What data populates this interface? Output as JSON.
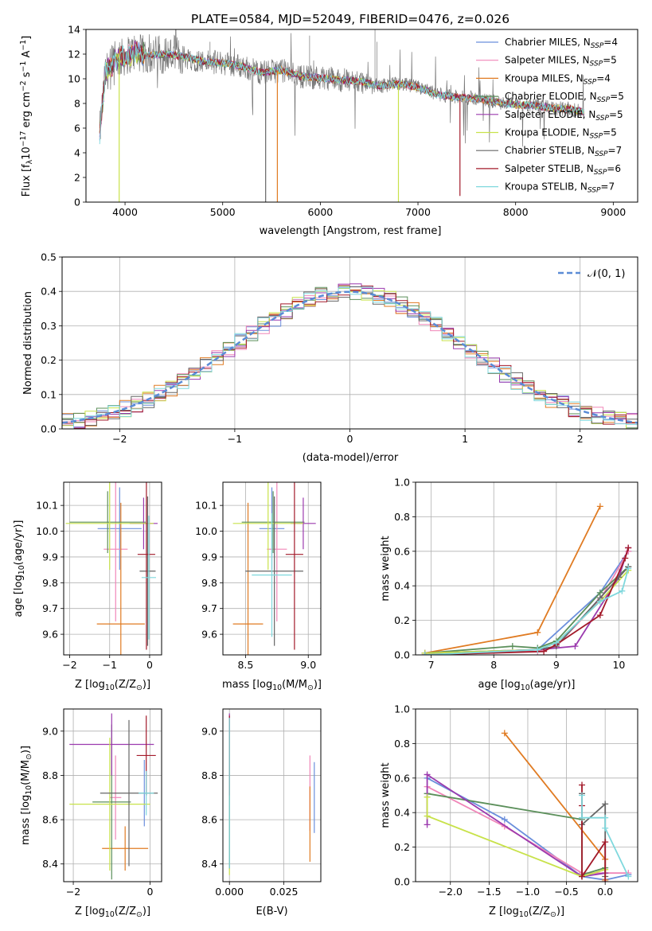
{
  "title": "PLATE=0584, MJD=52049, FIBERID=0476, z=0.026",
  "colors": [
    "#6b8fdc",
    "#f086b8",
    "#e07b22",
    "#5b8f5a",
    "#9b3aae",
    "#c8e24a",
    "#666666",
    "#a31a2a",
    "#7fd8dd"
  ],
  "chart_data": [
    {
      "type": "line",
      "name": "spectrum",
      "xlabel": "wavelength [Angstrom, rest frame]",
      "ylabel_parts": [
        "Flux [f",
        "λ",
        "10",
        "−17",
        " erg cm",
        "−2",
        " s",
        "−1",
        " A",
        "−1",
        "]"
      ],
      "xlim": [
        3600,
        9250
      ],
      "ylim": [
        0,
        14
      ],
      "xticks": [
        4000,
        5000,
        6000,
        7000,
        8000,
        9000
      ],
      "yticks": [
        0,
        2,
        4,
        6,
        8,
        10,
        12,
        14
      ],
      "grid": false,
      "legend_position": "top-right",
      "series": [
        {
          "name": "Chabrier MILES, N_SSP=4"
        },
        {
          "name": "Salpeter MILES, N_SSP=5"
        },
        {
          "name": "Kroupa MILES, N_SSP=4"
        },
        {
          "name": "Chabrier ELODIE, N_SSP=5"
        },
        {
          "name": "Salpeter ELODIE, N_SSP=5"
        },
        {
          "name": "Kroupa ELODIE, N_SSP=5"
        },
        {
          "name": "Chabrier STELIB, N_SSP=7"
        },
        {
          "name": "Salpeter STELIB, N_SSP=6"
        },
        {
          "name": "Kroupa STELIB, N_SSP=7"
        }
      ],
      "continuum": {
        "x": [
          3740,
          3800,
          3900,
          4000,
          4100,
          4200,
          4400,
          4600,
          4800,
          5000,
          5200,
          5400,
          5600,
          5800,
          6000,
          6200,
          6400,
          6600,
          6800,
          7000,
          7200,
          7400,
          7600,
          7800,
          8000,
          8200,
          8400,
          8600,
          8700
        ],
        "y": [
          5.5,
          10.5,
          11.5,
          11.8,
          12.2,
          11.9,
          12.0,
          11.8,
          11.4,
          11.3,
          11.0,
          10.5,
          10.7,
          10.2,
          10.1,
          9.9,
          9.8,
          9.4,
          9.6,
          9.3,
          8.7,
          8.5,
          8.4,
          8.1,
          7.9,
          7.8,
          7.6,
          7.5,
          7.3
        ]
      },
      "dips": [
        {
          "x": 3940,
          "y": 0.0,
          "series": 5
        },
        {
          "x": 5440,
          "y": 0.0,
          "series": 6
        },
        {
          "x": 5560,
          "y": 0.0,
          "series": 2
        },
        {
          "x": 6800,
          "y": 0.0,
          "series": 5
        },
        {
          "x": 7430,
          "y": 0.5,
          "series": 7
        }
      ]
    },
    {
      "type": "step",
      "name": "residuals",
      "xlabel": "(data-model)/error",
      "ylabel": "Normed distribution",
      "xlim": [
        -2.5,
        2.5
      ],
      "ylim": [
        0,
        0.5
      ],
      "xticks": [
        -2,
        -1,
        0,
        1,
        2
      ],
      "yticks": [
        0.0,
        0.1,
        0.2,
        0.3,
        0.4,
        0.5
      ],
      "grid": true,
      "legend_position": "top-right",
      "legend_label_parts": [
        "𝒩",
        "(0, 1)"
      ],
      "bin_width": 0.1,
      "reference_curve": "standard normal pdf"
    },
    {
      "type": "errorbar",
      "name": "age-vs-Z",
      "xlabel_parts": [
        "Z [log",
        "10",
        "(Z/Z",
        "⊙",
        ")]"
      ],
      "ylabel_parts": [
        "age  [log",
        "10",
        "(age/yr)]"
      ],
      "xlim": [
        -2.15,
        0.3
      ],
      "ylim": [
        9.52,
        10.19
      ],
      "xticks": [
        -2,
        -1,
        0
      ],
      "yticks": [
        9.6,
        9.7,
        9.8,
        9.9,
        10.0,
        10.1
      ],
      "grid": true,
      "points": [
        {
          "series": 0,
          "x": -0.75,
          "xerr": 0.55,
          "y": 10.01,
          "yerr": 0.16
        },
        {
          "series": 1,
          "x": -0.85,
          "xerr": 0.3,
          "y": 9.93,
          "yerr": 0.28
        },
        {
          "series": 2,
          "x": -0.72,
          "xerr": 0.6,
          "y": 9.64,
          "yerr": 0.47
        },
        {
          "series": 3,
          "x": -1.05,
          "xerr": 0.95,
          "y": 10.035,
          "yerr": 0.12
        },
        {
          "series": 4,
          "x": -0.15,
          "xerr": 0.35,
          "y": 10.03,
          "yerr": 0.1
        },
        {
          "series": 5,
          "x": -1.0,
          "xerr": 1.1,
          "y": 10.03,
          "yerr": 0.18
        },
        {
          "series": 6,
          "x": -0.05,
          "xerr": 0.2,
          "y": 9.845,
          "yerr": 0.29
        },
        {
          "series": 7,
          "x": -0.08,
          "xerr": 0.22,
          "y": 9.91,
          "yerr": 0.37
        },
        {
          "series": 8,
          "x": -0.02,
          "xerr": 0.18,
          "y": 9.82,
          "yerr": 0.24
        }
      ]
    },
    {
      "type": "errorbar",
      "name": "age-vs-mass",
      "xlabel_parts": [
        "mass [log",
        "10",
        "(M/M",
        "⊙",
        ")]"
      ],
      "xlim": [
        8.32,
        9.1
      ],
      "ylim": [
        9.52,
        10.19
      ],
      "xticks": [
        8.5,
        9.0
      ],
      "yticks": [
        9.6,
        9.7,
        9.8,
        9.9,
        10.0,
        10.1
      ],
      "grid": true,
      "points": [
        {
          "series": 0,
          "x": 8.71,
          "xerr": 0.1,
          "y": 10.01,
          "yerr": 0.16
        },
        {
          "series": 1,
          "x": 8.75,
          "xerr": 0.08,
          "y": 9.93,
          "yerr": 0.28
        },
        {
          "series": 2,
          "x": 8.52,
          "xerr": 0.12,
          "y": 9.64,
          "yerr": 0.47
        },
        {
          "series": 3,
          "x": 8.72,
          "xerr": 0.25,
          "y": 10.035,
          "yerr": 0.12
        },
        {
          "series": 4,
          "x": 8.96,
          "xerr": 0.1,
          "y": 10.03,
          "yerr": 0.1
        },
        {
          "series": 5,
          "x": 8.68,
          "xerr": 0.28,
          "y": 10.03,
          "yerr": 0.18
        },
        {
          "series": 6,
          "x": 8.73,
          "xerr": 0.23,
          "y": 9.845,
          "yerr": 0.29
        },
        {
          "series": 7,
          "x": 8.89,
          "xerr": 0.07,
          "y": 9.91,
          "yerr": 0.37
        },
        {
          "series": 8,
          "x": 8.71,
          "xerr": 0.16,
          "y": 9.83,
          "yerr": 0.24
        }
      ]
    },
    {
      "type": "line",
      "name": "mass-weight-vs-age",
      "xlabel_parts": [
        "age  [log",
        "10",
        "(age/yr)]"
      ],
      "ylabel": "mass weight",
      "xlim": [
        6.75,
        10.3
      ],
      "ylim": [
        0,
        1
      ],
      "xticks": [
        7,
        8,
        9,
        10
      ],
      "yticks": [
        0.0,
        0.2,
        0.4,
        0.6,
        0.8,
        1.0
      ],
      "grid": true,
      "series": [
        {
          "series": 0,
          "x": [
            6.9,
            8.7,
            9.7,
            10.15
          ],
          "y": [
            0.01,
            0.03,
            0.36,
            0.6
          ]
        },
        {
          "series": 1,
          "x": [
            6.9,
            8.7,
            9.0,
            9.7,
            10.15
          ],
          "y": [
            0.01,
            0.02,
            0.05,
            0.32,
            0.6
          ]
        },
        {
          "series": 2,
          "x": [
            6.9,
            8.7,
            9.7
          ],
          "y": [
            0.01,
            0.13,
            0.86
          ]
        },
        {
          "series": 3,
          "x": [
            6.9,
            8.3,
            8.7,
            9.0,
            9.7,
            10.15
          ],
          "y": [
            0.01,
            0.05,
            0.04,
            0.08,
            0.36,
            0.51
          ]
        },
        {
          "series": 4,
          "x": [
            6.9,
            8.7,
            9.3,
            10.0,
            10.15
          ],
          "y": [
            0.01,
            0.03,
            0.05,
            0.45,
            0.62
          ]
        },
        {
          "series": 5,
          "x": [
            6.9,
            8.7,
            9.0,
            9.7,
            10.15
          ],
          "y": [
            0.01,
            0.03,
            0.07,
            0.31,
            0.49
          ]
        },
        {
          "series": 6,
          "x": [
            6.9,
            8.7,
            9.0,
            9.7,
            10.0,
            10.15
          ],
          "y": [
            0.0,
            0.03,
            0.05,
            0.33,
            0.45,
            0.51
          ]
        },
        {
          "series": 7,
          "x": [
            6.9,
            8.8,
            9.0,
            9.7,
            10.1,
            10.15
          ],
          "y": [
            0.0,
            0.02,
            0.06,
            0.23,
            0.56,
            0.62
          ]
        },
        {
          "series": 8,
          "x": [
            6.9,
            8.7,
            9.0,
            9.7,
            10.05,
            10.15
          ],
          "y": [
            0.0,
            0.03,
            0.07,
            0.31,
            0.37,
            0.5
          ]
        }
      ]
    },
    {
      "type": "errorbar",
      "name": "mass-vs-Z",
      "xlabel_parts": [
        "Z [log",
        "10",
        "(Z/Z",
        "⊙",
        ")]"
      ],
      "ylabel_parts": [
        "mass [log",
        "10",
        "(M/M",
        "⊙",
        ")]"
      ],
      "xlim": [
        -2.25,
        0.3
      ],
      "ylim": [
        8.32,
        9.1
      ],
      "xticks": [
        -2,
        0
      ],
      "yticks": [
        8.4,
        8.6,
        8.8,
        9.0
      ],
      "grid": true,
      "points": [
        {
          "series": 0,
          "x": -0.15,
          "xerr": 0.15,
          "y": 8.72,
          "yerr": 0.15
        },
        {
          "series": 1,
          "x": -0.9,
          "xerr": 0.15,
          "y": 8.7,
          "yerr": 0.19
        },
        {
          "series": 2,
          "x": -0.65,
          "xerr": 0.6,
          "y": 8.47,
          "yerr": 0.1
        },
        {
          "series": 3,
          "x": -1.0,
          "xerr": 0.5,
          "y": 8.68,
          "yerr": 0.35
        },
        {
          "series": 4,
          "x": -1.0,
          "xerr": 1.1,
          "y": 8.94,
          "yerr": 0.14
        },
        {
          "series": 5,
          "x": -1.05,
          "xerr": 1.05,
          "y": 8.67,
          "yerr": 0.3
        },
        {
          "series": 6,
          "x": -0.55,
          "xerr": 0.75,
          "y": 8.72,
          "yerr": 0.33
        },
        {
          "series": 7,
          "x": -0.1,
          "xerr": 0.25,
          "y": 8.89,
          "yerr": 0.18
        },
        {
          "series": 8,
          "x": -0.1,
          "xerr": 0.2,
          "y": 8.72,
          "yerr": 0.1
        }
      ]
    },
    {
      "type": "errorbar",
      "name": "mass-vs-EBV",
      "xlabel": "E(B-V)",
      "xlim": [
        -0.003,
        0.042
      ],
      "ylim": [
        8.32,
        9.1
      ],
      "xticks": [
        0.0,
        0.025
      ],
      "xtick_labels": [
        "0.000",
        "0.025"
      ],
      "yticks": [
        8.4,
        8.6,
        8.8,
        9.0
      ],
      "grid": true,
      "points": [
        {
          "series": 0,
          "x": 0.039,
          "xerr": 0,
          "y": 8.7,
          "yerr": 0.16
        },
        {
          "series": 1,
          "x": 0.037,
          "xerr": 0,
          "y": 8.72,
          "yerr": 0.17
        },
        {
          "series": 2,
          "x": 0.037,
          "xerr": 0,
          "y": 8.58,
          "yerr": 0.17
        },
        {
          "series": 3,
          "x": 0.0,
          "xerr": 0,
          "y": 8.72,
          "yerr": 0.34
        },
        {
          "series": 4,
          "x": 0.0,
          "xerr": 0,
          "y": 8.94,
          "yerr": 0.14
        },
        {
          "series": 5,
          "x": 0.0,
          "xerr": 0,
          "y": 8.67,
          "yerr": 0.32
        },
        {
          "series": 6,
          "x": 0.0,
          "xerr": 0,
          "y": 8.72,
          "yerr": 0.34
        },
        {
          "series": 7,
          "x": 0.0,
          "xerr": 0,
          "y": 8.89,
          "yerr": 0.18
        },
        {
          "series": 8,
          "x": 0.0,
          "xerr": 0,
          "y": 8.72,
          "yerr": 0.34
        }
      ]
    },
    {
      "type": "line",
      "name": "mass-weight-vs-Z",
      "xlabel_parts": [
        "Z [log",
        "10",
        "(Z/Z",
        "⊙",
        ")]"
      ],
      "ylabel": "mass weight",
      "xlim": [
        -2.45,
        0.42
      ],
      "ylim": [
        0,
        1
      ],
      "xticks": [
        -2.0,
        -1.5,
        -1.0,
        -0.5,
        0.0
      ],
      "yticks": [
        0.0,
        0.2,
        0.4,
        0.6,
        0.8,
        1.0
      ],
      "grid": true,
      "series": [
        {
          "series": 0,
          "x": [
            -2.3,
            -1.3,
            -0.3,
            0.0,
            0.3
          ],
          "y": [
            0.6,
            0.36,
            0.03,
            0.01,
            0.04
          ]
        },
        {
          "series": 1,
          "x": [
            -2.3,
            -1.3,
            -0.3,
            0.0,
            0.3
          ],
          "y": [
            0.55,
            0.32,
            0.05,
            0.05,
            0.05
          ]
        },
        {
          "series": 2,
          "x": [
            -1.3,
            0.0,
            0.0
          ],
          "y": [
            0.86,
            0.13,
            0.01
          ]
        },
        {
          "series": 3,
          "x": [
            -2.3,
            -0.3,
            -0.3,
            0.0,
            0.0
          ],
          "y": [
            0.51,
            0.36,
            0.04,
            0.08,
            0.05
          ]
        },
        {
          "series": 4,
          "x": [
            -2.3,
            -2.3,
            -0.3,
            0.0
          ],
          "y": [
            0.33,
            0.62,
            0.03,
            0.05
          ]
        },
        {
          "series": 5,
          "x": [
            -2.3,
            -2.3,
            -0.3,
            0.0
          ],
          "y": [
            0.49,
            0.38,
            0.03,
            0.07
          ]
        },
        {
          "series": 6,
          "x": [
            -0.3,
            -0.3,
            0.0,
            0.0
          ],
          "y": [
            0.51,
            0.33,
            0.45,
            0.03
          ]
        },
        {
          "series": 7,
          "x": [
            -0.3,
            -0.3,
            -0.3,
            0.0,
            0.0
          ],
          "y": [
            0.56,
            0.44,
            0.03,
            0.23,
            0.0
          ]
        },
        {
          "series": 8,
          "x": [
            -0.3,
            -0.3,
            0.0,
            0.0,
            0.3
          ],
          "y": [
            0.5,
            0.37,
            0.37,
            0.31,
            0.03
          ]
        }
      ]
    }
  ]
}
